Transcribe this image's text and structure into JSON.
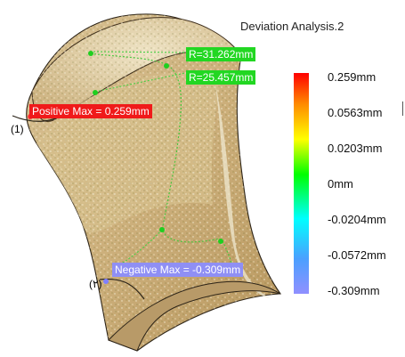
{
  "title": "Deviation Analysis.2",
  "callouts": {
    "radius_top": "R=31.262mm",
    "radius_bottom": "R=25.457mm",
    "positive_max": "Positive Max = 0.259mm",
    "negative_max": "Negative Max = -0.309mm"
  },
  "markers": {
    "left": "(1)",
    "bottom": "(٢)"
  },
  "scale": [
    "0.259mm",
    "0.0563mm",
    "0.0203mm",
    "0mm",
    "-0.0204mm",
    "-0.0572mm",
    "-0.309mm"
  ],
  "colors": {
    "surface": "#d6ba8a",
    "deviation_points": "#fff6c8",
    "callout_green": "#22d722",
    "callout_red": "#f01a1a",
    "callout_blue": "#8f8ff5"
  }
}
